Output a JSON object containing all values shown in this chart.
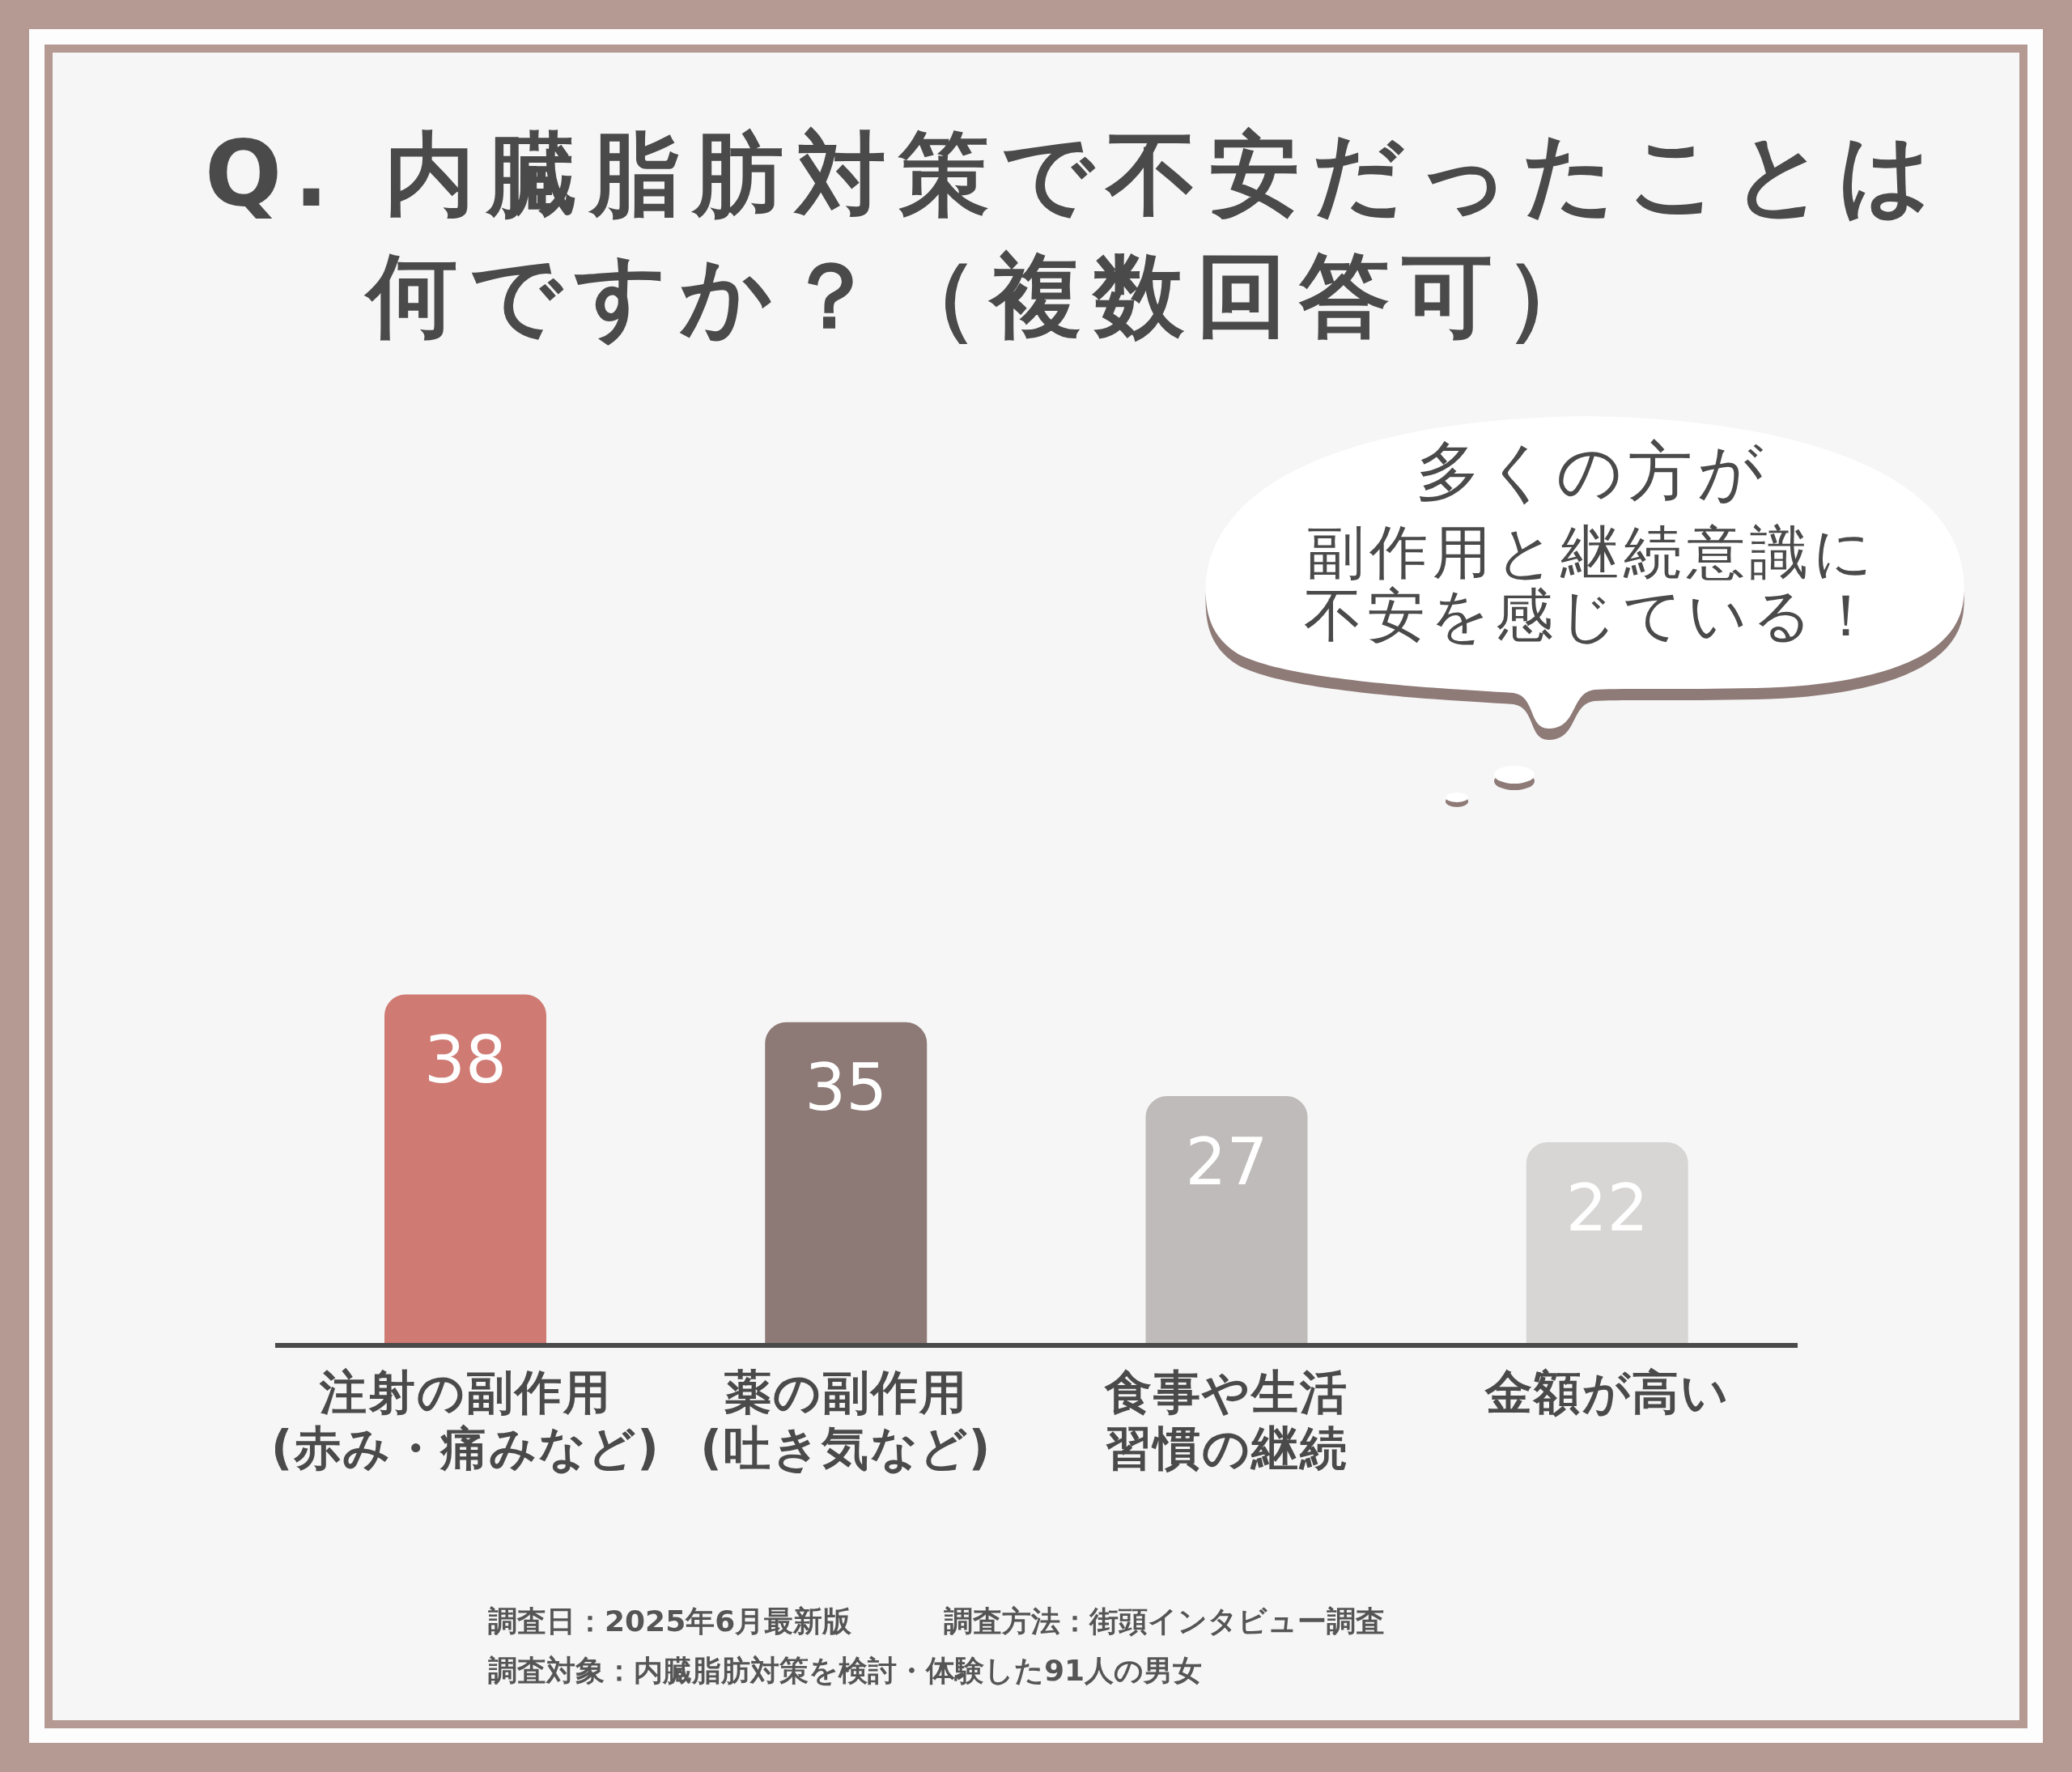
{
  "chart_data": {
    "type": "bar",
    "title": "Q. 内臓脂肪対策で不安だったことは何ですか？（複数回答可）",
    "categories": [
      "注射の副作用(赤み・痛みなど)",
      "薬の副作用(吐き気など)",
      "食事や生活習慣の継続",
      "金額が高い"
    ],
    "values": [
      38,
      35,
      27,
      22
    ],
    "colors": [
      "#cf7a73",
      "#8d7a77",
      "#bebbba",
      "#d8d6d5"
    ],
    "data_labels": true,
    "annotations": [
      "多くの方が",
      "副作用と継続意識に",
      "不安を感じている！",
      "調査日：2025年6月最新版",
      "調査方法：街頭インタビュー調査",
      "調査対象：内臓脂肪対策を検討・体験した91人の男女"
    ]
  }
}
